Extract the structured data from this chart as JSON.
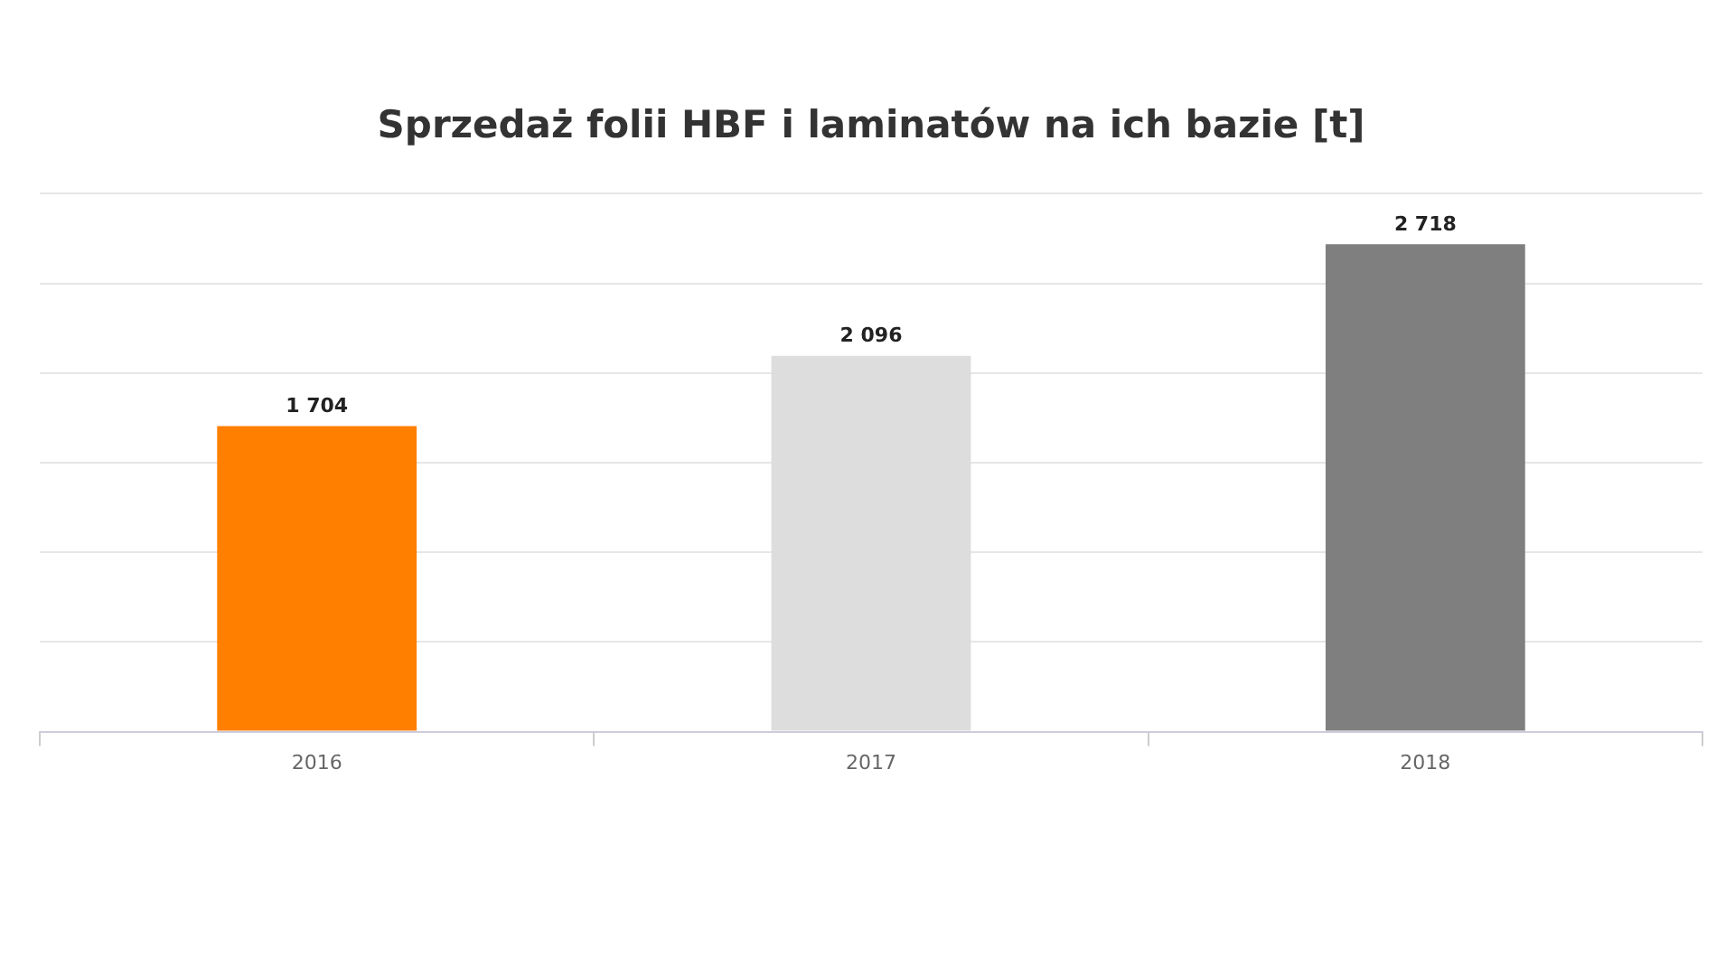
{
  "chart_data": {
    "type": "bar",
    "title": "Sprzedaż folii HBF i laminatów na ich bazie [t]",
    "categories": [
      "2016",
      "2017",
      "2018"
    ],
    "values": [
      1704,
      2096,
      2718
    ],
    "colors": [
      "#ff7f00",
      "#dddddd",
      "#7f7f7f"
    ],
    "value_labels": [
      "1 704",
      "2 096",
      "2 718"
    ],
    "ylim": [
      0,
      3000
    ],
    "yticks": [
      {
        "value": 0,
        "label": null
      },
      {
        "value": 500,
        "label": null
      },
      {
        "value": 1000,
        "label": null
      },
      {
        "value": 1500,
        "label": null
      },
      {
        "value": 2000,
        "label": null
      },
      {
        "value": 2500,
        "label": null
      },
      {
        "value": 3000,
        "label": null
      }
    ],
    "tick_labels": "x",
    "grid": "y",
    "legend": false
  }
}
